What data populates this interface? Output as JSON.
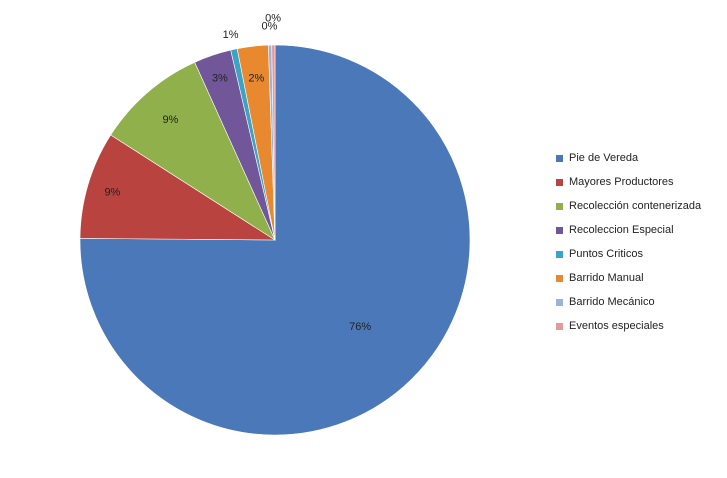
{
  "chart_data": {
    "type": "pie",
    "categories": [
      "Pie de Vereda",
      "Mayores Productores",
      "Recolección contenerizada",
      "Recoleccion Especial",
      "Puntos Criticos",
      "Barrido Manual",
      "Barrido Mecánico",
      "Eventos especiales"
    ],
    "values": [
      76,
      9,
      9,
      3,
      1,
      2,
      0,
      0
    ],
    "data_labels": [
      "76%",
      "9%",
      "9%",
      "3%",
      "1%",
      "2%",
      "0%",
      "0%"
    ],
    "colors": [
      "#4a78b8",
      "#b8433f",
      "#8fb04a",
      "#72569a",
      "#3ba3c4",
      "#e8892f",
      "#9ab2de",
      "#e69a98"
    ],
    "legend_position": "right"
  }
}
